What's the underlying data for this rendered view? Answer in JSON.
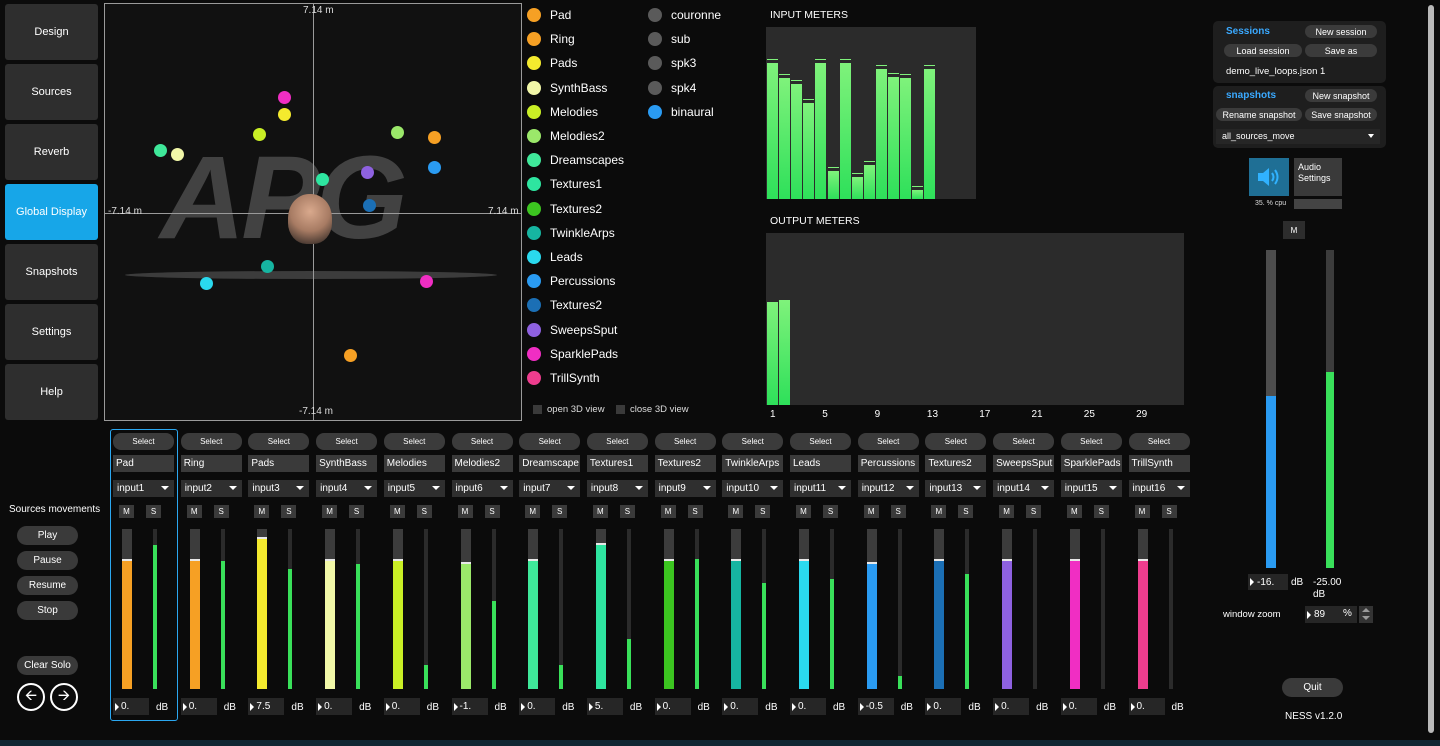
{
  "nav": {
    "items": [
      {
        "label": "Design"
      },
      {
        "label": "Sources"
      },
      {
        "label": "Reverb"
      },
      {
        "label": "Global Display"
      },
      {
        "label": "Snapshots"
      },
      {
        "label": "Settings"
      },
      {
        "label": "Help"
      }
    ],
    "active": "Global Display"
  },
  "view2d": {
    "top_label": "7.14 m",
    "bottom_label": "-7.14 m",
    "left_label": "-7.14 m",
    "right_label": "7.14 m",
    "logo_text": "APG",
    "open3d": "open 3D view",
    "close3d": "close 3D view"
  },
  "legend": [
    {
      "label": "Pad",
      "color": "#f6a024"
    },
    {
      "label": "Ring",
      "color": "#f6a024"
    },
    {
      "label": "Pads",
      "color": "#f4ea2e"
    },
    {
      "label": "SynthBass",
      "color": "#f1f7a8"
    },
    {
      "label": "Melodies",
      "color": "#c9ef25"
    },
    {
      "label": "Melodies2",
      "color": "#9be86a"
    },
    {
      "label": "Dreamscapes",
      "color": "#3fe89a"
    },
    {
      "label": "Textures1",
      "color": "#2ee5a0"
    },
    {
      "label": "Textures2",
      "color": "#3cc520"
    },
    {
      "label": "TwinkleArps",
      "color": "#16b5a1"
    },
    {
      "label": "Leads",
      "color": "#2ad9ee"
    },
    {
      "label": "Percussions",
      "color": "#2a9bf2"
    },
    {
      "label": "Textures2",
      "color": "#1b6fb5"
    },
    {
      "label": "SweepsSput",
      "color": "#8e61e0"
    },
    {
      "label": "SparklePads",
      "color": "#f02ec3"
    },
    {
      "label": "TrillSynth",
      "color": "#ee3d8e"
    },
    {
      "label": "couronne",
      "color": "#5a5a5a"
    },
    {
      "label": "sub",
      "color": "#5a5a5a"
    },
    {
      "label": "spk3",
      "color": "#5a5a5a"
    },
    {
      "label": "spk4",
      "color": "#5a5a5a"
    },
    {
      "label": "binaural",
      "color": "#2a9bf2"
    }
  ],
  "meters": {
    "input_title": "INPUT METERS",
    "output_title": "OUTPUT METERS",
    "input_levels": [
      0.88,
      0.78,
      0.74,
      0.62,
      0.88,
      0.18,
      0.88,
      0.14,
      0.22,
      0.84,
      0.79,
      0.78,
      0.06,
      0.84
    ],
    "output_levels": [
      0.75,
      0.76
    ],
    "output_ticks": [
      "1",
      "5",
      "9",
      "13",
      "17",
      "21",
      "25",
      "29"
    ]
  },
  "sessions": {
    "title": "Sessions",
    "new_label": "New session",
    "load_label": "Load session",
    "saveas_label": "Save as",
    "current": "demo_live_loops.json 1"
  },
  "snapshots": {
    "title": "snapshots",
    "new_label": "New snapshot",
    "rename_label": "Rename snapshot",
    "save_label": "Save snapshot",
    "current": "all_sources_move"
  },
  "audio": {
    "settings_label": "Audio Settings",
    "cpu": "35. % cpu",
    "mute_label": "M",
    "master_value": "-16.",
    "master_unit": "dB",
    "master_level": 0.6,
    "out_value": "-25.00",
    "out_unit": "dB",
    "out_level": 0.65,
    "zoom_label": "window zoom",
    "zoom_value": "89",
    "zoom_unit": "%"
  },
  "movements": {
    "title": "Sources movements",
    "play": "Play",
    "pause": "Pause",
    "resume": "Resume",
    "stop": "Stop",
    "clear_solo": "Clear Solo"
  },
  "footer": {
    "quit": "Quit",
    "version": "NESS v1.2.0"
  },
  "channels": [
    {
      "name": "Pad",
      "input": "input1",
      "value": "0.",
      "color": "#f6a024",
      "fader": 0.8,
      "meter": 0.9
    },
    {
      "name": "Ring",
      "input": "input2",
      "value": "0.",
      "color": "#f6a024",
      "fader": 0.8,
      "meter": 0.8
    },
    {
      "name": "Pads",
      "input": "input3",
      "value": "7.5",
      "color": "#f4ea2e",
      "fader": 0.94,
      "meter": 0.75
    },
    {
      "name": "SynthBass",
      "input": "input4",
      "value": "0.",
      "color": "#f1f7a8",
      "fader": 0.8,
      "meter": 0.78
    },
    {
      "name": "Melodies",
      "input": "input5",
      "value": "0.",
      "color": "#c9ef25",
      "fader": 0.8,
      "meter": 0.15
    },
    {
      "name": "Melodies2",
      "input": "input6",
      "value": "-1.",
      "color": "#9be86a",
      "fader": 0.78,
      "meter": 0.55
    },
    {
      "name": "Dreamscape",
      "input": "input7",
      "value": "0.",
      "color": "#3fe89a",
      "fader": 0.8,
      "meter": 0.15
    },
    {
      "name": "Textures1",
      "input": "input8",
      "value": "5.",
      "color": "#2ee5a0",
      "fader": 0.9,
      "meter": 0.31
    },
    {
      "name": "Textures2",
      "input": "input9",
      "value": "0.",
      "color": "#3cc520",
      "fader": 0.8,
      "meter": 0.81
    },
    {
      "name": "TwinkleArps",
      "input": "input10",
      "value": "0.",
      "color": "#16b5a1",
      "fader": 0.8,
      "meter": 0.66
    },
    {
      "name": "Leads",
      "input": "input11",
      "value": "0.",
      "color": "#2ad9ee",
      "fader": 0.8,
      "meter": 0.69
    },
    {
      "name": "Percussions",
      "input": "input12",
      "value": "-0.5",
      "color": "#2a9bf2",
      "fader": 0.78,
      "meter": 0.08
    },
    {
      "name": "Textures2",
      "input": "input13",
      "value": "0.",
      "color": "#1b6fb5",
      "fader": 0.8,
      "meter": 0.72
    },
    {
      "name": "SweepsSput",
      "input": "input14",
      "value": "0.",
      "color": "#8e61e0",
      "fader": 0.8,
      "meter": 0.0
    },
    {
      "name": "SparklePads",
      "input": "input15",
      "value": "0.",
      "color": "#f02ec3",
      "fader": 0.8,
      "meter": 0.0
    },
    {
      "name": "TrillSynth",
      "input": "input16",
      "value": "0.",
      "color": "#ee3d8e",
      "fader": 0.8,
      "meter": 0.0
    }
  ],
  "strip_labels": {
    "select": "Select",
    "mute": "M",
    "solo": "S",
    "db": "dB"
  }
}
